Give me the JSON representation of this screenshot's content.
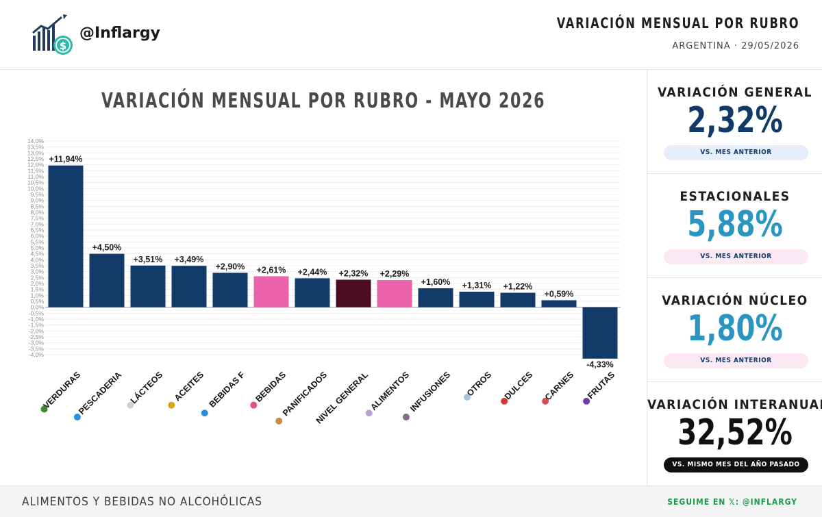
{
  "header": {
    "handle": "@Inflargy",
    "title": "VARIACIÓN MENSUAL POR RUBRO",
    "subtitle": "ARGENTINA · 29/05/2026",
    "logo_icon": "chart-coin-logo-icon"
  },
  "colors": {
    "navy": "#123a69",
    "pink": "#ea63ab",
    "maroon": "#4b0c24",
    "teal": "#2a95c1",
    "green": "#1f9a4d"
  },
  "chart_data": {
    "type": "bar",
    "title": "VARIACIÓN MENSUAL POR RUBRO - MAYO 2026",
    "xlabel": "",
    "ylabel": "",
    "ylim": [
      -4.0,
      14.0
    ],
    "y_tick_step": 0.5,
    "grid": true,
    "legend": "none",
    "categories": [
      "VERDURAS",
      "PESCADERIA",
      "LÁCTEOS",
      "ACEITES",
      "BEBIDAS F",
      "BEBIDAS",
      "PANIFICADOS",
      "NIVEL GENERAL",
      "ALIMENTOS",
      "INFUSIONES",
      "OTROS",
      "DULCES",
      "CARNES",
      "FRUTAS"
    ],
    "values": [
      11.94,
      4.5,
      3.51,
      3.49,
      2.9,
      2.61,
      2.44,
      2.32,
      2.29,
      1.6,
      1.31,
      1.22,
      0.59,
      -4.33
    ],
    "value_labels": [
      "+11,94%",
      "+4,50%",
      "+3,51%",
      "+3,49%",
      "+2,90%",
      "+2,61%",
      "+2,44%",
      "+2,32%",
      "+2,29%",
      "+1,60%",
      "+1,31%",
      "+1,22%",
      "+0,59%",
      "-4,33%"
    ],
    "bar_colors": [
      "#123a69",
      "#123a69",
      "#123a69",
      "#123a69",
      "#123a69",
      "#ea63ab",
      "#123a69",
      "#4b0c24",
      "#ea63ab",
      "#123a69",
      "#123a69",
      "#123a69",
      "#123a69",
      "#123a69"
    ],
    "category_icons": [
      "broccoli-icon",
      "fish-icon",
      "milk-icon",
      "sunflower-icon",
      "water-drop-icon",
      "soda-icon",
      "bread-icon",
      "none",
      "shopping-bag-icon",
      "tea-icon",
      "pill-icon",
      "candy-icon",
      "meat-icon",
      "grapes-icon"
    ],
    "icon_colors": [
      "#3f8a2a",
      "#2f8fd8",
      "#c9d3df",
      "#d9a51a",
      "#2f8fd8",
      "#e0527f",
      "#c98a46",
      "",
      "#b7a3d6",
      "#8a6a8a",
      "#a9c6de",
      "#d23a3a",
      "#d94a4a",
      "#6a3ea0"
    ]
  },
  "stats": [
    {
      "label": "VARIACIÓN GENERAL",
      "value": "2,32%",
      "pill": "VS. MES ANTERIOR",
      "value_color": "#123a69",
      "pill_bg": "#e6eef9",
      "pill_color": "#123a69"
    },
    {
      "label": "ESTACIONALES",
      "value": "5,88%",
      "pill": "VS. MES ANTERIOR",
      "value_color": "#2a95c1",
      "pill_bg": "#fbe8f2",
      "pill_color": "#123a69"
    },
    {
      "label": "VARIACIÓN NÚCLEO",
      "value": "1,80%",
      "pill": "VS. MES ANTERIOR",
      "value_color": "#2a95c1",
      "pill_bg": "#fbe8f2",
      "pill_color": "#123a69"
    },
    {
      "label": "VARIACIÓN INTERANUAL",
      "value": "32,52%",
      "pill": "VS. MISMO MES DEL AÑO PASADO",
      "value_color": "#111111",
      "pill_bg": "#111111",
      "pill_color": "#ffffff"
    }
  ],
  "footer": {
    "left": "ALIMENTOS Y BEBIDAS NO ALCOHÓLICAS",
    "right": "SEGUIME EN 𝕏: @INFLARGY"
  }
}
